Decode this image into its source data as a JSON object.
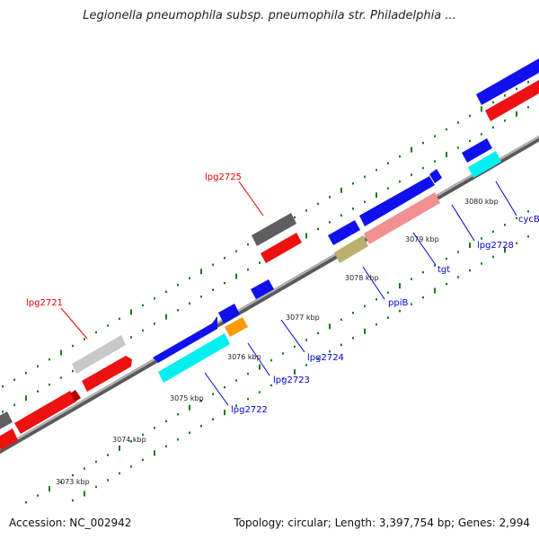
{
  "title": "Legionella pneumophila subsp. pneumophila str. Philadelphia ...",
  "accession_label": "Accession: NC_002942",
  "summary_label": "Topology: circular; Length: 3,397,754 bp; Genes: 2,994",
  "colors": {
    "backbone": "#8a8a8a",
    "tick_dot": "#1a7a1a",
    "forward_label": "#e00000",
    "reverse_label": "#0000d0",
    "kbp_label": "#222222"
  },
  "kbp_labels": [
    "3073 kbp",
    "3074 kbp",
    "3075 kbp",
    "3076 kbp",
    "3077 kbp",
    "3078 kbp",
    "3079 kbp",
    "3080 kbp"
  ],
  "gene_labels": [
    {
      "text": "lpg2721",
      "strand": "forward"
    },
    {
      "text": "lpg2725",
      "strand": "forward"
    },
    {
      "text": "lpg2722",
      "strand": "reverse"
    },
    {
      "text": "lpg2723",
      "strand": "reverse"
    },
    {
      "text": "lpg2724",
      "strand": "reverse"
    },
    {
      "text": "ppiB",
      "strand": "reverse"
    },
    {
      "text": "tgt",
      "strand": "reverse"
    },
    {
      "text": "lpg2728",
      "strand": "reverse"
    },
    {
      "text": "cycB",
      "strand": "reverse"
    }
  ]
}
